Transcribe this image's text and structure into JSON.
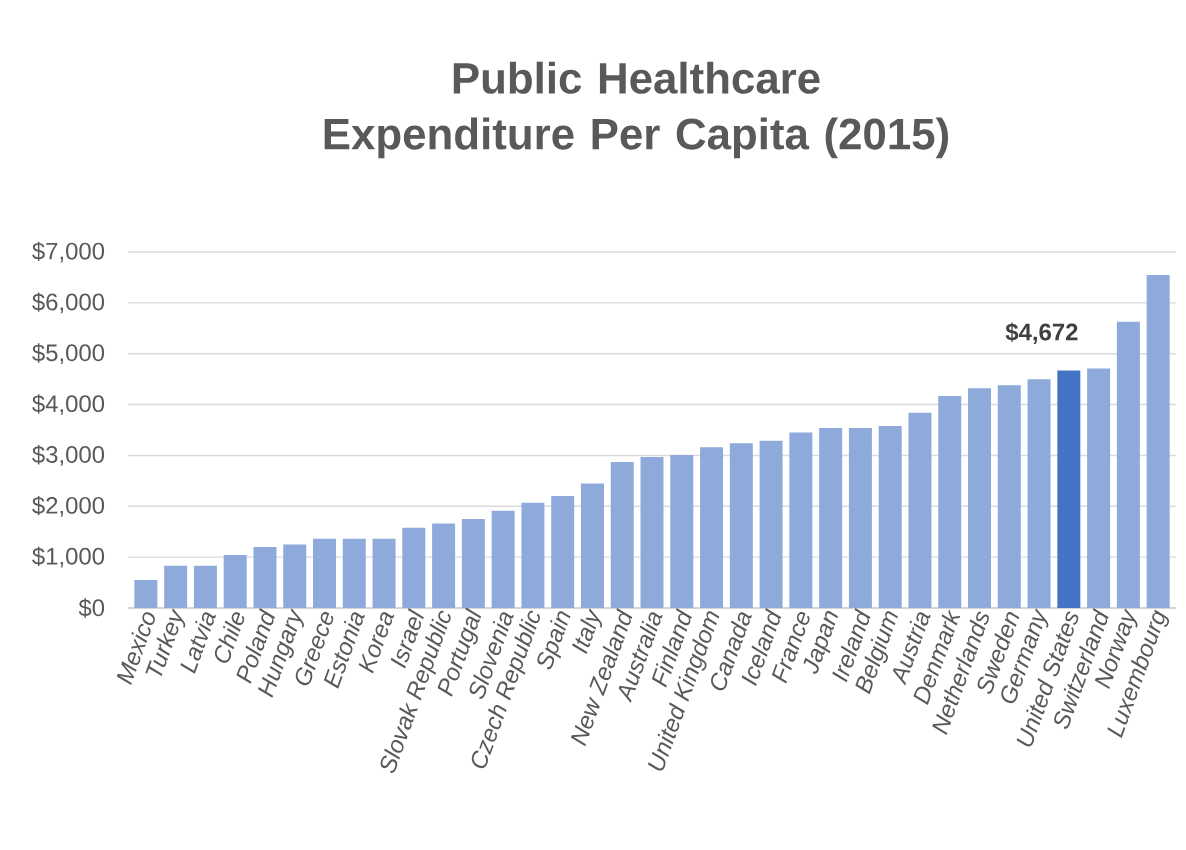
{
  "chart_data": {
    "type": "bar",
    "title": "Public Healthcare Expenditure Per Capita (2015)",
    "categories": [
      "Mexico",
      "Turkey",
      "Latvia",
      "Chile",
      "Poland",
      "Hungary",
      "Greece",
      "Estonia",
      "Korea",
      "Israel",
      "Slovak Republic",
      "Portugal",
      "Slovenia",
      "Czech Republic",
      "Spain",
      "Italy",
      "New Zealand",
      "Australia",
      "Finland",
      "United Kingdom",
      "Canada",
      "Iceland",
      "France",
      "Japan",
      "Ireland",
      "Belgium",
      "Austria",
      "Denmark",
      "Netherlands",
      "Sweden",
      "Germany",
      "United States",
      "Switzerland",
      "Norway",
      "Luxembourg"
    ],
    "values": [
      550,
      830,
      830,
      1040,
      1200,
      1250,
      1360,
      1360,
      1360,
      1580,
      1660,
      1750,
      1910,
      2070,
      2200,
      2450,
      2870,
      2970,
      3010,
      3160,
      3240,
      3290,
      3450,
      3540,
      3540,
      3580,
      3840,
      4170,
      4320,
      4380,
      4500,
      4672,
      4710,
      5630,
      6550
    ],
    "colors": [
      "#8eaadb",
      "#8eaadb",
      "#8eaadb",
      "#8eaadb",
      "#8eaadb",
      "#8eaadb",
      "#8eaadb",
      "#8eaadb",
      "#8eaadb",
      "#8eaadb",
      "#8eaadb",
      "#8eaadb",
      "#8eaadb",
      "#8eaadb",
      "#8eaadb",
      "#8eaadb",
      "#8eaadb",
      "#8eaadb",
      "#8eaadb",
      "#8eaadb",
      "#8eaadb",
      "#8eaadb",
      "#8eaadb",
      "#8eaadb",
      "#8eaadb",
      "#8eaadb",
      "#8eaadb",
      "#8eaadb",
      "#8eaadb",
      "#8eaadb",
      "#8eaadb",
      "#4472c4",
      "#8eaadb",
      "#8eaadb",
      "#8eaadb"
    ],
    "value_labels": [
      null,
      null,
      null,
      null,
      null,
      null,
      null,
      null,
      null,
      null,
      null,
      null,
      null,
      null,
      null,
      null,
      null,
      null,
      null,
      null,
      null,
      null,
      null,
      null,
      null,
      null,
      null,
      null,
      null,
      null,
      null,
      "$4,672",
      null,
      null,
      null
    ],
    "ylim": [
      0,
      7000
    ],
    "yticks": [
      {
        "value": 0,
        "label": "$0"
      },
      {
        "value": 1000,
        "label": "$1,000"
      },
      {
        "value": 2000,
        "label": "$2,000"
      },
      {
        "value": 3000,
        "label": "$3,000"
      },
      {
        "value": 4000,
        "label": "$4,000"
      },
      {
        "value": 5000,
        "label": "$5,000"
      },
      {
        "value": 6000,
        "label": "$6,000"
      },
      {
        "value": 7000,
        "label": "$7,000"
      }
    ],
    "grid": "y"
  }
}
